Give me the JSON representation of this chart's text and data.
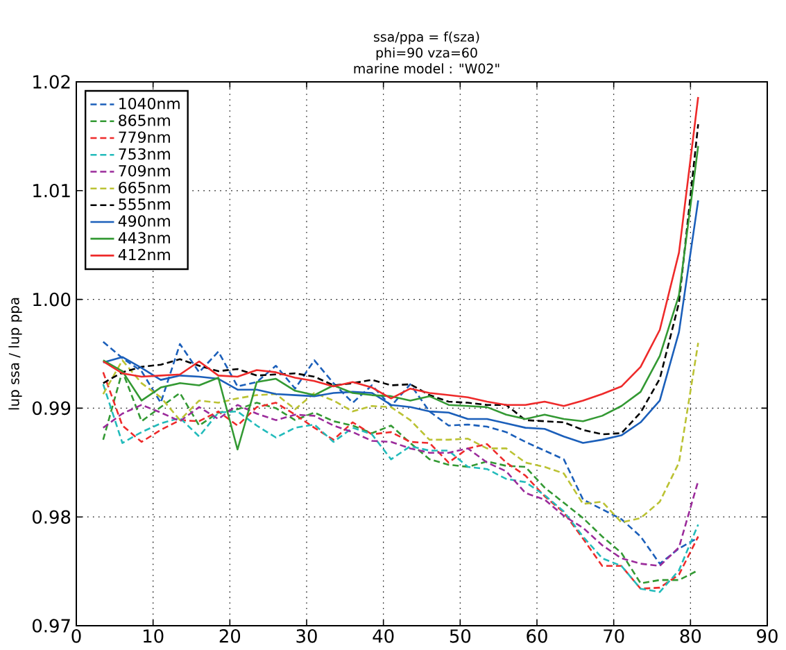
{
  "chart_data": {
    "type": "line",
    "title": "ssa/ppa = f(sza)",
    "subtitle": "phi=90 vza=60",
    "annotations": [
      "marine model : \"W02\""
    ],
    "ylabel": "lup ssa / lup ppa",
    "xlim": [
      0,
      90
    ],
    "ylim": [
      0.97,
      1.02
    ],
    "xticks": [
      0,
      10,
      20,
      30,
      40,
      50,
      60,
      70,
      80,
      90
    ],
    "yticks": [
      0.97,
      0.98,
      0.99,
      {
        "value": 1.0,
        "label": "1.00"
      },
      1.01,
      1.02
    ],
    "grid": true,
    "legend": "top left",
    "marker": "none",
    "x": [
      3.5,
      6,
      8.5,
      11,
      13.5,
      16,
      18.5,
      21,
      23.5,
      26,
      28.5,
      31,
      33.5,
      36,
      38.5,
      41,
      43.5,
      46,
      48.5,
      51,
      53.5,
      56,
      58.5,
      61,
      63.5,
      66,
      68.5,
      71,
      73.5,
      76,
      78.5,
      81
    ],
    "series": [
      {
        "name": "1040nm",
        "color": "#1b5fba",
        "line_style": "dashed",
        "values": [
          0.9961,
          0.9946,
          0.9934,
          0.9905,
          0.9959,
          0.9933,
          0.9952,
          0.992,
          0.9924,
          0.9939,
          0.9918,
          0.9944,
          0.9923,
          0.9905,
          0.9921,
          0.9902,
          0.9922,
          0.9897,
          0.9884,
          0.9885,
          0.9883,
          0.9878,
          0.9869,
          0.9861,
          0.9853,
          0.9816,
          0.9807,
          0.9798,
          0.9782,
          0.9757,
          0.9771,
          0.9781
        ]
      },
      {
        "name": "865nm",
        "color": "#339933",
        "line_style": "dashed",
        "values": [
          0.9871,
          0.9934,
          0.9888,
          0.9901,
          0.9914,
          0.9884,
          0.9896,
          0.9899,
          0.9905,
          0.99,
          0.9889,
          0.9896,
          0.9888,
          0.9884,
          0.9877,
          0.9884,
          0.9868,
          0.9853,
          0.9848,
          0.9846,
          0.9851,
          0.9847,
          0.9846,
          0.9827,
          0.9813,
          0.9799,
          0.9782,
          0.9767,
          0.9739,
          0.9742,
          0.9742,
          0.9751
        ]
      },
      {
        "name": "779nm",
        "color": "#ee2a2a",
        "line_style": "dashed",
        "values": [
          0.9933,
          0.9884,
          0.9869,
          0.988,
          0.9889,
          0.9888,
          0.9897,
          0.9884,
          0.9901,
          0.9905,
          0.9894,
          0.9882,
          0.9871,
          0.9887,
          0.9876,
          0.9878,
          0.9869,
          0.9868,
          0.985,
          0.9863,
          0.9867,
          0.985,
          0.9838,
          0.9819,
          0.9804,
          0.978,
          0.9755,
          0.9755,
          0.9734,
          0.9735,
          0.9747,
          0.9782
        ]
      },
      {
        "name": "753nm",
        "color": "#22bbbb",
        "line_style": "dashed",
        "values": [
          0.9922,
          0.9868,
          0.9878,
          0.9886,
          0.9891,
          0.9874,
          0.9896,
          0.9897,
          0.9884,
          0.9873,
          0.9882,
          0.9885,
          0.9869,
          0.9882,
          0.9876,
          0.9853,
          0.9865,
          0.9861,
          0.9861,
          0.9846,
          0.9844,
          0.9835,
          0.9832,
          0.982,
          0.9805,
          0.9782,
          0.9762,
          0.9755,
          0.9734,
          0.9731,
          0.9751,
          0.9793
        ]
      },
      {
        "name": "709nm",
        "color": "#9b2b9b",
        "line_style": "dashed",
        "values": [
          0.9882,
          0.9895,
          0.9903,
          0.9896,
          0.9888,
          0.9901,
          0.989,
          0.9903,
          0.9895,
          0.9889,
          0.9894,
          0.9893,
          0.9884,
          0.9878,
          0.987,
          0.9869,
          0.9863,
          0.9859,
          0.9859,
          0.9863,
          0.985,
          0.9842,
          0.9822,
          0.9816,
          0.9801,
          0.979,
          0.9774,
          0.9762,
          0.9757,
          0.9755,
          0.9772,
          0.9833
        ]
      },
      {
        "name": "665nm",
        "color": "#bbc233",
        "line_style": "dashed",
        "values": [
          0.9913,
          0.9944,
          0.9923,
          0.991,
          0.9889,
          0.9907,
          0.9905,
          0.9909,
          0.9912,
          0.9913,
          0.9899,
          0.9914,
          0.9907,
          0.9897,
          0.9902,
          0.9901,
          0.9889,
          0.9871,
          0.9871,
          0.9872,
          0.9863,
          0.9863,
          0.985,
          0.9846,
          0.984,
          0.9812,
          0.9814,
          0.9795,
          0.9799,
          0.9814,
          0.985,
          0.996
        ]
      },
      {
        "name": "555nm",
        "color": "#000000",
        "line_style": "dashed",
        "values": [
          0.9923,
          0.9933,
          0.9938,
          0.994,
          0.9945,
          0.9939,
          0.9934,
          0.9936,
          0.993,
          0.9931,
          0.9932,
          0.9929,
          0.9921,
          0.9923,
          0.9926,
          0.9921,
          0.9922,
          0.9912,
          0.9906,
          0.9905,
          0.9903,
          0.9903,
          0.9889,
          0.9888,
          0.9887,
          0.988,
          0.9876,
          0.9877,
          0.9896,
          0.9927,
          0.9997,
          1.0161
        ]
      },
      {
        "name": "490nm",
        "color": "#1b5fba",
        "line_style": "solid",
        "values": [
          0.9942,
          0.9947,
          0.9937,
          0.9926,
          0.993,
          0.9929,
          0.9927,
          0.9917,
          0.9917,
          0.9913,
          0.9912,
          0.9911,
          0.9914,
          0.9915,
          0.9914,
          0.9903,
          0.9901,
          0.9897,
          0.9896,
          0.989,
          0.989,
          0.9886,
          0.9882,
          0.9881,
          0.9874,
          0.9868,
          0.9871,
          0.9875,
          0.9887,
          0.9907,
          0.997,
          1.0091
        ]
      },
      {
        "name": "443nm",
        "color": "#339933",
        "line_style": "solid",
        "values": [
          0.9944,
          0.9934,
          0.9907,
          0.9919,
          0.9923,
          0.9921,
          0.9928,
          0.9862,
          0.9924,
          0.9927,
          0.9916,
          0.9912,
          0.9921,
          0.9914,
          0.9912,
          0.9911,
          0.9907,
          0.9911,
          0.9903,
          0.9902,
          0.9901,
          0.9894,
          0.989,
          0.9894,
          0.989,
          0.9888,
          0.9893,
          0.9902,
          0.9915,
          0.9948,
          1.0004,
          1.0141
        ]
      },
      {
        "name": "412nm",
        "color": "#ee2a2a",
        "line_style": "solid",
        "values": [
          0.9943,
          0.9932,
          0.9929,
          0.993,
          0.9931,
          0.9943,
          0.993,
          0.9929,
          0.9935,
          0.9933,
          0.9928,
          0.9925,
          0.992,
          0.9924,
          0.9919,
          0.9909,
          0.9918,
          0.9914,
          0.9912,
          0.991,
          0.9906,
          0.9903,
          0.9903,
          0.9906,
          0.9902,
          0.9907,
          0.9913,
          0.992,
          0.9938,
          0.9972,
          1.0043,
          1.0186
        ]
      }
    ]
  }
}
